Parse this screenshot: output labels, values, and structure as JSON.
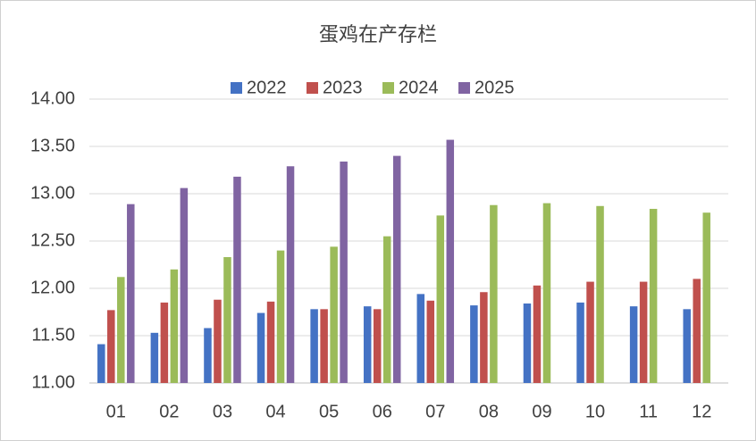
{
  "chart_data": {
    "type": "bar",
    "title": "蛋鸡在产存栏",
    "categories": [
      "01",
      "02",
      "03",
      "04",
      "05",
      "06",
      "07",
      "08",
      "09",
      "10",
      "11",
      "12"
    ],
    "series": [
      {
        "name": "2022",
        "color": "#4472c4",
        "values": [
          11.41,
          11.53,
          11.58,
          11.74,
          11.78,
          11.81,
          11.94,
          11.82,
          11.84,
          11.85,
          11.81,
          11.78
        ]
      },
      {
        "name": "2023",
        "color": "#c0504d",
        "values": [
          11.77,
          11.85,
          11.88,
          11.86,
          11.78,
          11.78,
          11.87,
          11.96,
          12.03,
          12.07,
          12.07,
          12.1
        ]
      },
      {
        "name": "2024",
        "color": "#9bbb59",
        "values": [
          12.12,
          12.2,
          12.33,
          12.4,
          12.44,
          12.55,
          12.77,
          12.88,
          12.9,
          12.87,
          12.84,
          12.8
        ]
      },
      {
        "name": "2025",
        "color": "#8064a2",
        "values": [
          12.89,
          13.06,
          13.18,
          13.29,
          13.34,
          13.4,
          13.57,
          null,
          null,
          null,
          null,
          null
        ]
      }
    ],
    "ylim": [
      11,
      14
    ],
    "yticks": [
      {
        "value": 11,
        "label": "11.00"
      },
      {
        "value": 11.5,
        "label": "11.50"
      },
      {
        "value": 12,
        "label": "12.00"
      },
      {
        "value": 12.5,
        "label": "12.50"
      },
      {
        "value": 13,
        "label": "13.00"
      },
      {
        "value": 13.5,
        "label": "13.50"
      },
      {
        "value": 14,
        "label": "14.00"
      }
    ],
    "grid": true,
    "legend": "top"
  }
}
